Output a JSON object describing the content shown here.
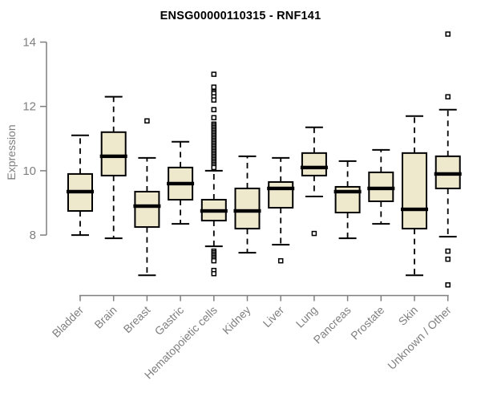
{
  "title": "ENSG00000110315 - RNF141",
  "chart_data": {
    "type": "boxplot",
    "title": "ENSG00000110315 - RNF141",
    "xlabel": "",
    "ylabel": "Expression",
    "ylim": [
      8,
      14
    ],
    "yticks": [
      8,
      10,
      12,
      14
    ],
    "grid": false,
    "legend": "none",
    "categories": [
      "Bladder",
      "Brain",
      "Breast",
      "Gastric",
      "Hematopoietic cells",
      "Kidney",
      "Liver",
      "Lung",
      "Pancreas",
      "Prostate",
      "Skin",
      "Unknown / Other"
    ],
    "boxes": [
      {
        "category": "Bladder",
        "whisker_low": 8.0,
        "q1": 8.75,
        "median": 9.35,
        "q3": 9.9,
        "whisker_high": 11.1,
        "outliers": []
      },
      {
        "category": "Brain",
        "whisker_low": 7.9,
        "q1": 9.85,
        "median": 10.45,
        "q3": 11.2,
        "whisker_high": 12.3,
        "outliers": []
      },
      {
        "category": "Breast",
        "whisker_low": 6.75,
        "q1": 8.25,
        "median": 8.9,
        "q3": 9.35,
        "whisker_high": 10.4,
        "outliers": [
          11.55
        ]
      },
      {
        "category": "Gastric",
        "whisker_low": 8.35,
        "q1": 9.1,
        "median": 9.6,
        "q3": 10.1,
        "whisker_high": 10.9,
        "outliers": []
      },
      {
        "category": "Hematopoietic cells",
        "whisker_low": 7.65,
        "q1": 8.45,
        "median": 8.75,
        "q3": 9.1,
        "whisker_high": 10.0,
        "outliers": [
          13.0,
          12.6,
          12.45,
          12.4,
          12.3,
          12.2,
          11.9,
          11.65,
          11.45,
          11.4,
          11.35,
          11.3,
          11.25,
          11.2,
          11.15,
          11.1,
          11.05,
          11.0,
          10.95,
          10.9,
          10.85,
          10.8,
          10.75,
          10.7,
          10.65,
          10.6,
          10.55,
          10.5,
          10.45,
          10.4,
          10.35,
          10.3,
          10.25,
          10.2,
          10.15,
          10.1,
          7.5,
          7.45,
          7.4,
          7.35,
          7.3,
          7.25,
          7.2,
          6.9,
          6.8
        ]
      },
      {
        "category": "Kidney",
        "whisker_low": 7.45,
        "q1": 8.2,
        "median": 8.75,
        "q3": 9.45,
        "whisker_high": 10.45,
        "outliers": []
      },
      {
        "category": "Liver",
        "whisker_low": 7.7,
        "q1": 8.85,
        "median": 9.45,
        "q3": 9.65,
        "whisker_high": 10.4,
        "outliers": [
          7.2
        ]
      },
      {
        "category": "Lung",
        "whisker_low": 9.2,
        "q1": 9.85,
        "median": 10.1,
        "q3": 10.55,
        "whisker_high": 11.35,
        "outliers": [
          8.05
        ]
      },
      {
        "category": "Pancreas",
        "whisker_low": 7.9,
        "q1": 8.7,
        "median": 9.35,
        "q3": 9.5,
        "whisker_high": 10.3,
        "outliers": []
      },
      {
        "category": "Prostate",
        "whisker_low": 8.35,
        "q1": 9.05,
        "median": 9.45,
        "q3": 9.95,
        "whisker_high": 10.65,
        "outliers": []
      },
      {
        "category": "Skin",
        "whisker_low": 6.75,
        "q1": 8.2,
        "median": 8.8,
        "q3": 10.55,
        "whisker_high": 11.7,
        "outliers": []
      },
      {
        "category": "Unknown / Other",
        "whisker_low": 7.95,
        "q1": 9.45,
        "median": 9.9,
        "q3": 10.45,
        "whisker_high": 11.9,
        "outliers": [
          14.25,
          12.3,
          7.5,
          7.25,
          6.45
        ]
      }
    ],
    "colors": {
      "box_fill": "#EEE8CD",
      "box_border": "#000000",
      "median": "#000000",
      "whisker": "#000000",
      "outlier_stroke": "#000000",
      "outlier_fill": "#ffffff",
      "axis": "#7f7f7f",
      "tick_label": "#7f7f7f",
      "title": "#000000",
      "background": "#ffffff"
    }
  }
}
